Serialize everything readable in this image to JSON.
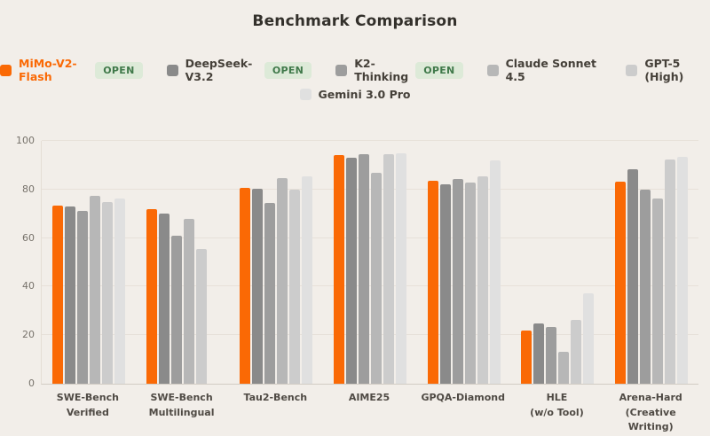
{
  "title": "Benchmark Comparison",
  "open_badge_label": "OPEN",
  "colors": {
    "background": "#f2eee9",
    "title_text": "#33302b",
    "gridline": "#e7e1d9",
    "axis_line": "#d2ccc4",
    "y_tick_text": "#77726b",
    "x_label_text": "#4f4a44",
    "open_badge_bg": "#ddead8",
    "open_badge_text": "#40794a",
    "mimo_accent": "#fa6905"
  },
  "chart_data": {
    "type": "bar",
    "title": "Benchmark Comparison",
    "categories": [
      [
        "SWE-Bench",
        "Verified"
      ],
      [
        "SWE-Bench",
        "Multilingual"
      ],
      [
        "Tau2-Bench"
      ],
      [
        "AIME25"
      ],
      [
        "GPQA-Diamond"
      ],
      [
        "HLE",
        "(w/o Tool)"
      ],
      [
        "Arena-Hard",
        "(Creative Writing)"
      ]
    ],
    "series": [
      {
        "name": "MiMo-V2-Flash",
        "color": "#fa6905",
        "label_color": "#fa6905",
        "open": true,
        "values": [
          73.4,
          72.0,
          80.5,
          94.1,
          83.5,
          21.8,
          83.2
        ]
      },
      {
        "name": "DeepSeek-V3.2",
        "color": "#8a8a8a",
        "label_color": "#454039",
        "open": true,
        "values": [
          73.1,
          70.2,
          80.2,
          93.2,
          82.0,
          24.7,
          88.5
        ]
      },
      {
        "name": "K2-Thinking",
        "color": "#9d9d9d",
        "label_color": "#454039",
        "open": true,
        "values": [
          71.3,
          61.1,
          74.3,
          94.5,
          84.3,
          23.4,
          80.0
        ]
      },
      {
        "name": "Claude Sonnet 4.5",
        "color": "#b7b7b7",
        "label_color": "#454039",
        "open": false,
        "values": [
          77.2,
          68.0,
          84.8,
          87.0,
          83.0,
          13.0,
          76.4
        ]
      },
      {
        "name": "GPT-5 (High)",
        "color": "#cccccc",
        "label_color": "#454039",
        "open": false,
        "values": [
          74.9,
          55.3,
          80.0,
          94.6,
          85.4,
          26.3,
          92.2
        ]
      },
      {
        "name": "Gemini 3.0 Pro",
        "color": "#e0e0e0",
        "label_color": "#454039",
        "open": false,
        "values": [
          76.2,
          null,
          85.3,
          95.0,
          91.9,
          37.3,
          93.4
        ]
      }
    ],
    "yticks": [
      0,
      20,
      40,
      60,
      80,
      100
    ],
    "ylim": [
      0,
      100
    ],
    "grid": true,
    "legend_position": "top"
  }
}
